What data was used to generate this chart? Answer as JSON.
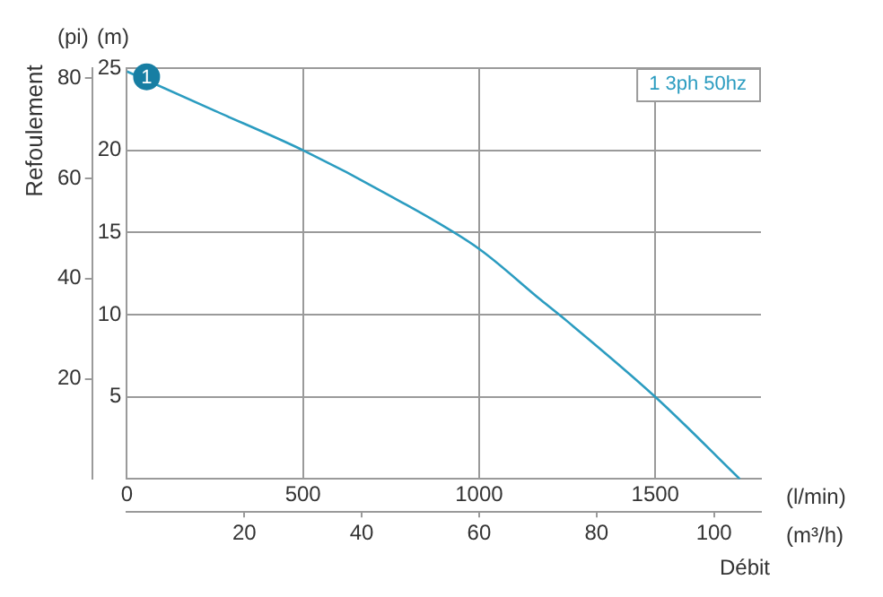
{
  "chart_data": {
    "type": "line",
    "xlabel": "(l/min)",
    "x2label": "(m³/h)",
    "ylabel": "(m)",
    "y2label": "(pi)",
    "x": [
      0,
      250,
      500,
      750,
      1000,
      1175,
      1250,
      1500,
      1740
    ],
    "series": [
      {
        "name": "1 3ph 50hz",
        "color": "#2b9cc0",
        "values": [
          24.8,
          22.4,
          20,
          17.2,
          14.0,
          10.9,
          9.6,
          5.0,
          0
        ]
      }
    ],
    "xlim": [
      0,
      1800
    ],
    "xticks": [
      0,
      500,
      1000,
      1500
    ],
    "x2lim": [
      0,
      108
    ],
    "x2ticks": [
      20,
      40,
      60,
      80,
      100
    ],
    "ylim": [
      0,
      25
    ],
    "yticks": [
      {
        "value": 0,
        "label": null
      },
      5,
      10,
      15,
      20,
      25
    ],
    "y2lim": [
      0,
      82
    ],
    "y2ticks": [
      20,
      40,
      60,
      80
    ],
    "annotations": [
      {
        "text": "1",
        "x": 0,
        "y": 24.8
      },
      "Refoulement",
      "Débit"
    ],
    "grid": true,
    "legend": "top right",
    "marker": "none",
    "line_style": "solid"
  }
}
